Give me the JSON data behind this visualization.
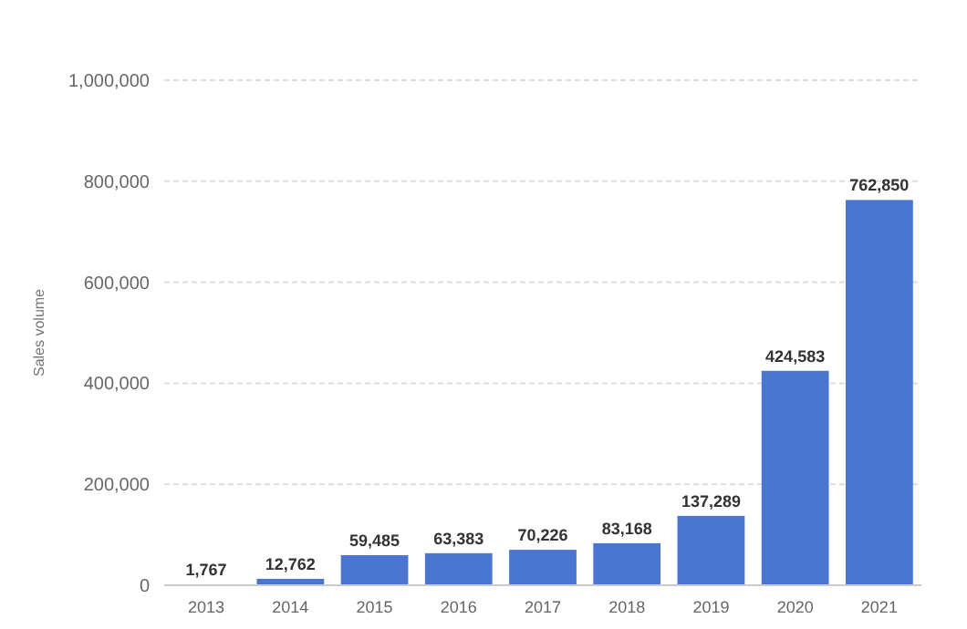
{
  "chart_data": {
    "type": "bar",
    "ylabel": "Sales volume",
    "categories": [
      "2013",
      "2014",
      "2015",
      "2016",
      "2017",
      "2018",
      "2019",
      "2020",
      "2021"
    ],
    "values": [
      1767,
      12762,
      59485,
      63383,
      70226,
      83168,
      137289,
      424583,
      762850
    ],
    "value_labels": [
      "1,767",
      "12,762",
      "59,485",
      "63,383",
      "70,226",
      "83,168",
      "137,289",
      "424,583",
      "762,850"
    ],
    "color": "#4a76d2",
    "ylim": [
      0,
      1000000
    ],
    "yticks": [
      {
        "value": 0,
        "label": "0"
      },
      {
        "value": 200000,
        "label": "200,000"
      },
      {
        "value": 400000,
        "label": "400,000"
      },
      {
        "value": 600000,
        "label": "600,000"
      },
      {
        "value": 800000,
        "label": "800,000"
      },
      {
        "value": 1000000,
        "label": "1,000,000"
      }
    ],
    "grid": "y"
  }
}
